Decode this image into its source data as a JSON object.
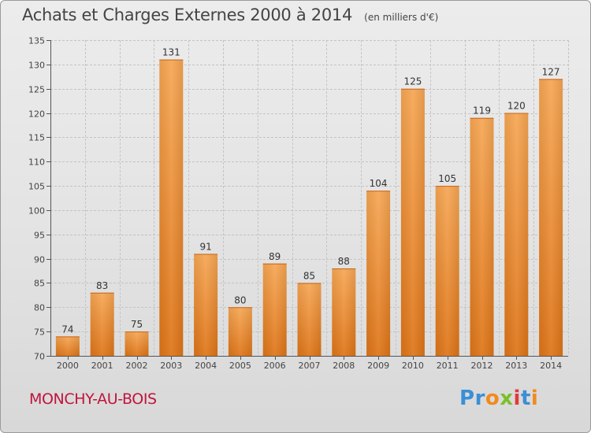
{
  "chart_title": "Achats et Charges Externes 2000 à 2014",
  "chart_subtitle": "(en milliers d'€)",
  "commune": "MONCHY-AU-BOIS",
  "logo": {
    "letters": [
      "P",
      "r",
      "o",
      "x",
      "i",
      "t",
      "i"
    ],
    "colors": [
      "#3a8fd6",
      "#3a8fd6",
      "#f28a1a",
      "#7cbf2a",
      "#e23b3b",
      "#3a8fd6",
      "#f28a1a"
    ]
  },
  "chart_data": {
    "type": "bar",
    "title": "Achats et Charges Externes 2000 à 2014",
    "subtitle": "(en milliers d'€)",
    "categories": [
      "2000",
      "2001",
      "2002",
      "2003",
      "2004",
      "2005",
      "2006",
      "2007",
      "2008",
      "2009",
      "2010",
      "2011",
      "2012",
      "2013",
      "2014"
    ],
    "values": [
      74,
      83,
      75,
      131,
      91,
      80,
      89,
      85,
      88,
      104,
      125,
      105,
      119,
      120,
      127
    ],
    "ylim": [
      70,
      135
    ],
    "yticks": [
      70,
      75,
      80,
      85,
      90,
      95,
      100,
      105,
      110,
      115,
      120,
      125,
      130,
      135
    ],
    "grid": true,
    "bar_color": "#f0922e",
    "xlabel": "",
    "ylabel": ""
  }
}
